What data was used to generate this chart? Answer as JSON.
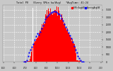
{
  "title": "Total PV   (Every 5Min kw/Avg)   *AvgTime: 41:24",
  "legend_entries": [
    "5Min AvgkW",
    "RunningAvgkW"
  ],
  "legend_colors": [
    "#ff0000",
    "#0000ff"
  ],
  "bg_color": "#c8c8c8",
  "plot_bg_color": "#c8c8c8",
  "bar_color": "#ff0000",
  "avg_color": "#0000ff",
  "grid_color": "#ffffff",
  "yticks": [
    0,
    500,
    1000,
    1500,
    2000,
    2500,
    3000,
    3500
  ],
  "ylim": [
    0,
    3800
  ],
  "num_points": 288
}
